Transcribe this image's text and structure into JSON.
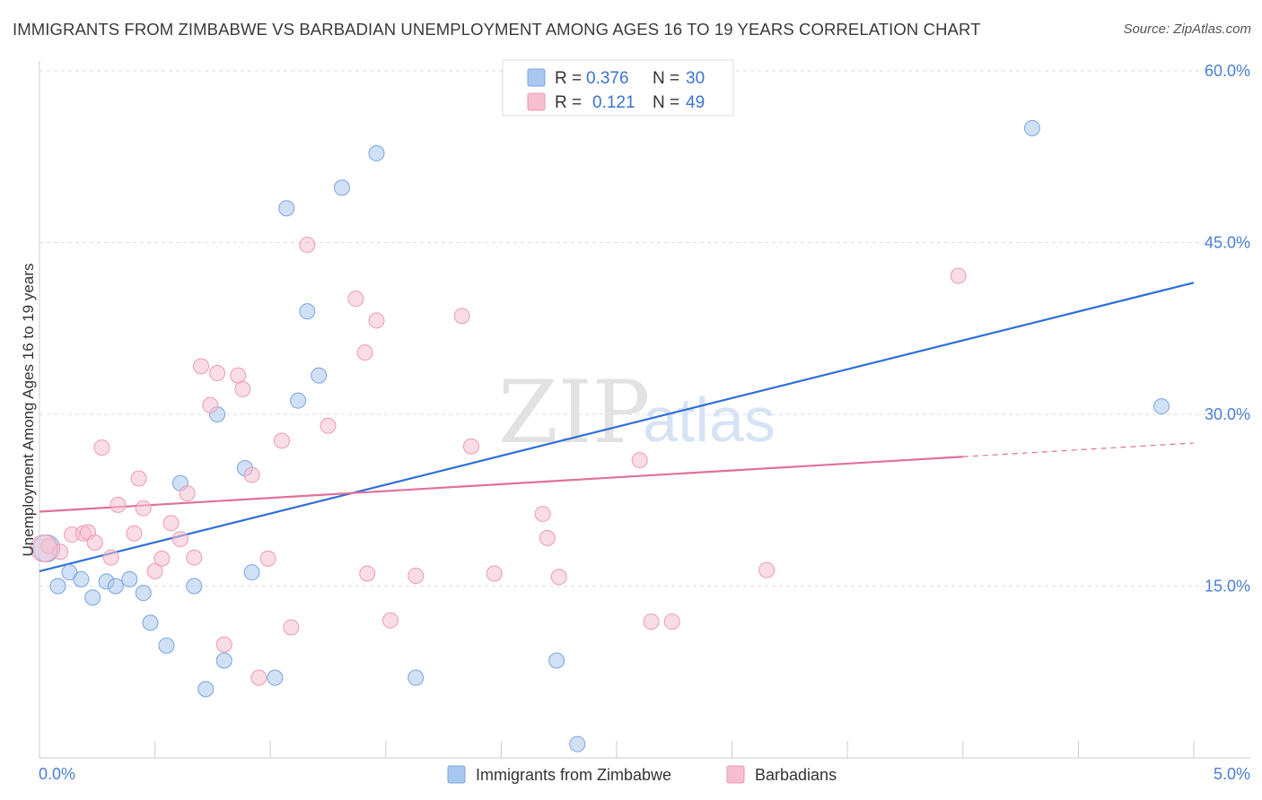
{
  "title": "IMMIGRANTS FROM ZIMBABWE VS BARBADIAN UNEMPLOYMENT AMONG AGES 16 TO 19 YEARS CORRELATION CHART",
  "source": "Source: ZipAtlas.com",
  "watermark": {
    "zip": "ZIP",
    "atlas": "atlas"
  },
  "legend_top": [
    {
      "r_label": "R =",
      "r_value": "0.376",
      "n_label": "N =",
      "n_value": "30",
      "color": "#a9c8ef",
      "border": "#7aa5e0"
    },
    {
      "r_label": "R =",
      "r_value": "0.121",
      "n_label": "N =",
      "n_value": "49",
      "color": "#f6bfd0",
      "border": "#ee9ab5"
    }
  ],
  "legend_bottom": [
    {
      "label": "Immigrants from Zimbabwe",
      "color": "#a9c8ef",
      "border": "#7aa5e0"
    },
    {
      "label": "Barbadians",
      "color": "#f6bfd0",
      "border": "#ee9ab5"
    }
  ],
  "chart_data": {
    "type": "scatter",
    "title": "IMMIGRANTS FROM ZIMBABWE VS BARBADIAN UNEMPLOYMENT AMONG AGES 16 TO 19 YEARS CORRELATION CHART",
    "xlabel": "",
    "ylabel": "Unemployment Among Ages 16 to 19 years",
    "xlim": [
      0,
      5
    ],
    "ylim": [
      0,
      60
    ],
    "x_tick_labels": [
      "0.0%",
      "5.0%"
    ],
    "y_ticks": [
      15,
      30,
      45,
      60
    ],
    "y_tick_labels": [
      "15.0%",
      "30.0%",
      "45.0%",
      "60.0%"
    ],
    "grid": true,
    "series": [
      {
        "name": "Immigrants from Zimbabwe",
        "color": "#a9c8ef",
        "stroke": "#7aa5e0",
        "line_color": "#2f6fd4",
        "trend": {
          "x0": 0,
          "y0": 16.3,
          "x1": 5,
          "y1": 41.5
        },
        "points": [
          [
            0.03,
            18.3
          ],
          [
            0.08,
            15.0
          ],
          [
            0.13,
            16.2
          ],
          [
            0.18,
            15.6
          ],
          [
            0.23,
            14.0
          ],
          [
            0.29,
            15.4
          ],
          [
            0.33,
            15.0
          ],
          [
            0.39,
            15.6
          ],
          [
            0.45,
            14.4
          ],
          [
            0.48,
            11.8
          ],
          [
            0.55,
            9.8
          ],
          [
            0.61,
            24.0
          ],
          [
            0.67,
            15.0
          ],
          [
            0.72,
            6.0
          ],
          [
            0.77,
            30.0
          ],
          [
            0.8,
            8.5
          ],
          [
            0.89,
            25.3
          ],
          [
            0.92,
            16.2
          ],
          [
            1.02,
            7.0
          ],
          [
            1.07,
            48.0
          ],
          [
            1.12,
            31.2
          ],
          [
            1.16,
            39.0
          ],
          [
            1.21,
            33.4
          ],
          [
            1.31,
            49.8
          ],
          [
            1.46,
            52.8
          ],
          [
            1.63,
            7.0
          ],
          [
            2.24,
            8.5
          ],
          [
            2.33,
            1.2
          ],
          [
            4.3,
            55.0
          ],
          [
            4.86,
            30.7
          ]
        ]
      },
      {
        "name": "Barbadians",
        "color": "#f6bfd0",
        "stroke": "#ee9ab5",
        "line_color": "#e0709b",
        "trend": {
          "x0": 0,
          "y0": 21.5,
          "x1": 4.0,
          "y1": 26.3,
          "dash_x1": 5,
          "dash_y1": 27.5
        },
        "points": [
          [
            0.04,
            18.5
          ],
          [
            0.09,
            18.0
          ],
          [
            0.14,
            19.5
          ],
          [
            0.19,
            19.6
          ],
          [
            0.21,
            19.7
          ],
          [
            0.24,
            18.8
          ],
          [
            0.27,
            27.1
          ],
          [
            0.31,
            17.5
          ],
          [
            0.34,
            22.1
          ],
          [
            0.41,
            19.6
          ],
          [
            0.43,
            24.4
          ],
          [
            0.45,
            21.8
          ],
          [
            0.5,
            16.3
          ],
          [
            0.53,
            17.4
          ],
          [
            0.57,
            20.5
          ],
          [
            0.61,
            19.1
          ],
          [
            0.64,
            23.1
          ],
          [
            0.67,
            17.5
          ],
          [
            0.7,
            34.2
          ],
          [
            0.74,
            30.8
          ],
          [
            0.77,
            33.6
          ],
          [
            0.8,
            9.9
          ],
          [
            0.86,
            33.4
          ],
          [
            0.88,
            32.2
          ],
          [
            0.92,
            24.7
          ],
          [
            0.95,
            7.0
          ],
          [
            0.99,
            17.4
          ],
          [
            1.05,
            27.7
          ],
          [
            1.09,
            11.4
          ],
          [
            1.16,
            44.8
          ],
          [
            1.25,
            29.0
          ],
          [
            1.37,
            40.1
          ],
          [
            1.41,
            35.4
          ],
          [
            1.42,
            16.1
          ],
          [
            1.46,
            38.2
          ],
          [
            1.52,
            12.0
          ],
          [
            1.63,
            15.9
          ],
          [
            1.83,
            38.6
          ],
          [
            1.87,
            27.2
          ],
          [
            1.97,
            16.1
          ],
          [
            2.18,
            21.3
          ],
          [
            2.2,
            19.2
          ],
          [
            2.25,
            15.8
          ],
          [
            2.6,
            26.0
          ],
          [
            2.65,
            11.9
          ],
          [
            2.74,
            11.9
          ],
          [
            3.15,
            16.4
          ],
          [
            3.98,
            42.1
          ],
          [
            0.02,
            18.3
          ]
        ]
      }
    ]
  }
}
